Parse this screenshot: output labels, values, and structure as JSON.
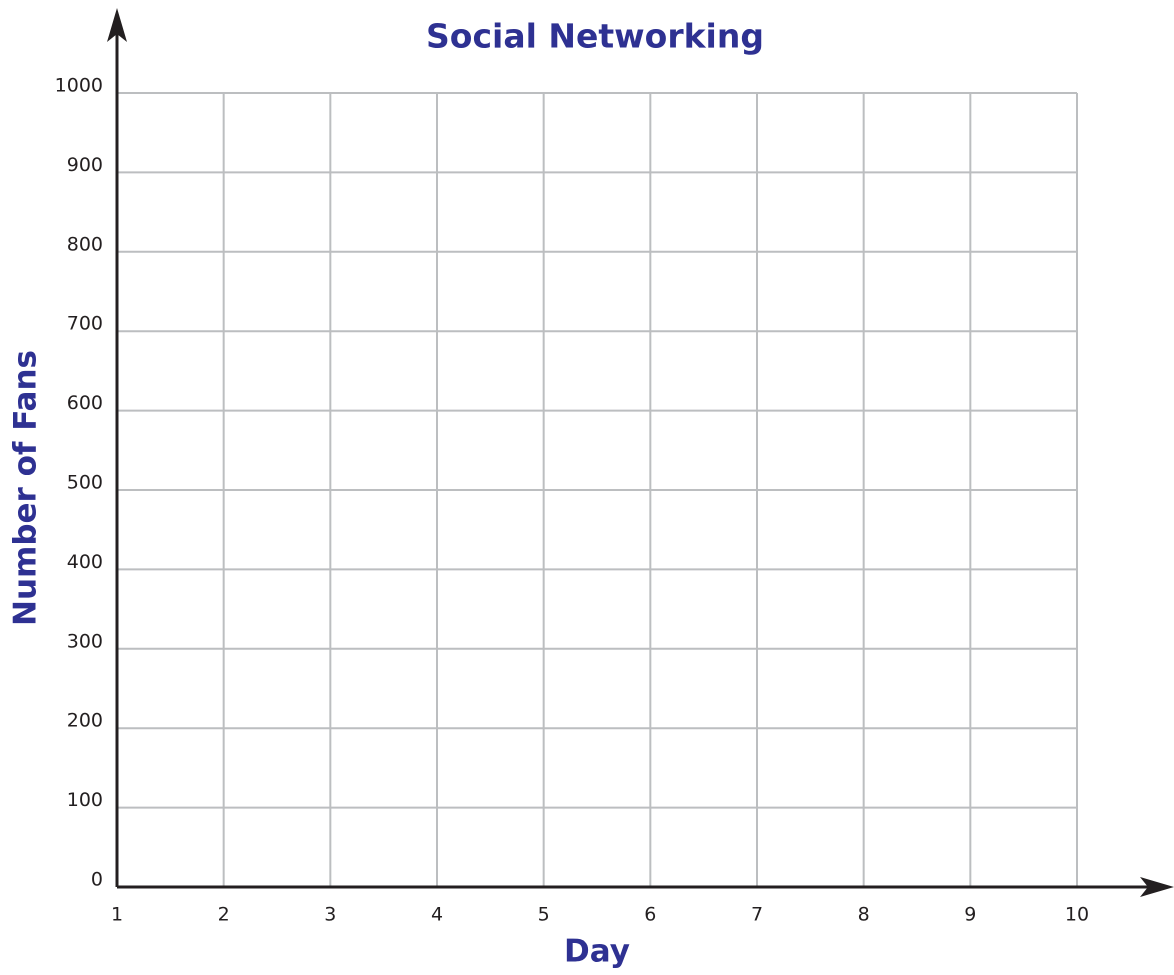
{
  "chart_data": {
    "type": "line",
    "title": "Social Networking",
    "x_label": "Day",
    "y_label": "Number of Fans",
    "xlim": [
      1,
      10
    ],
    "xticks": [
      1,
      2,
      3,
      4,
      5,
      6,
      7,
      8,
      9,
      10
    ],
    "ylim": [
      0,
      1000
    ],
    "yticks": [
      0,
      100,
      200,
      300,
      400,
      500,
      600,
      700,
      800,
      900,
      1000
    ],
    "grid": true
  }
}
